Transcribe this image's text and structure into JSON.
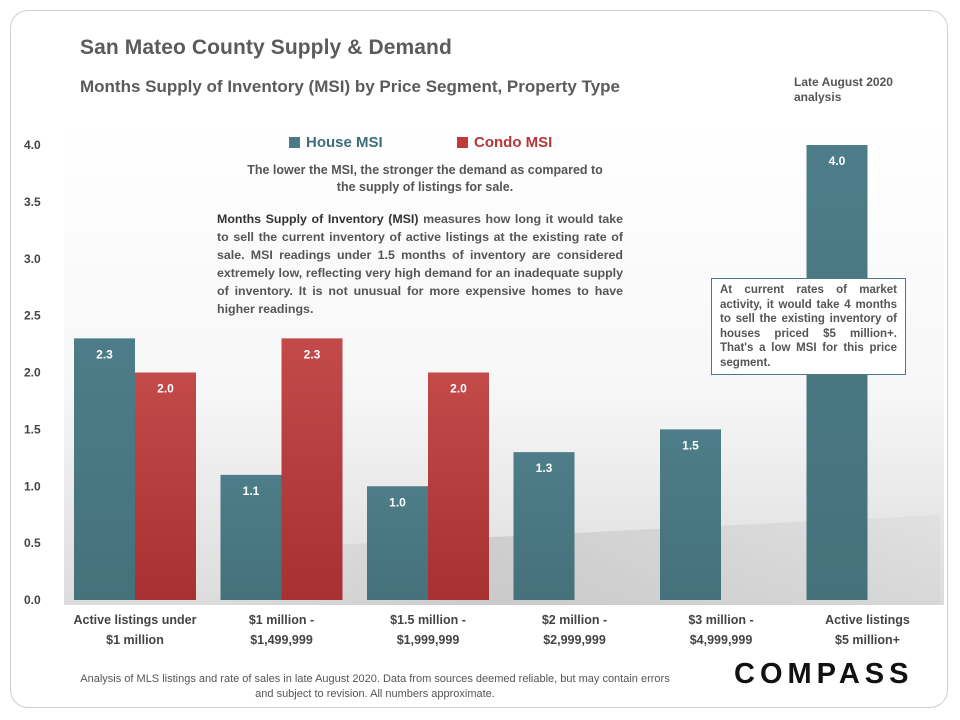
{
  "header": {
    "title": "San Mateo County Supply & Demand",
    "subtitle": "Months Supply of Inventory (MSI) by Price Segment, Property Type",
    "analysis_date": "Late August 2020 analysis"
  },
  "notes": {
    "demand_note": "The lower the MSI, the stronger the demand as compared to the supply of listings for sale.",
    "explain_lead": "Months Supply of Inventory (MSI)",
    "explain_body": " measures how long it would take to sell the current inventory of active listings at the existing rate of sale. MSI readings under 1.5 months of inventory are considered extremely low, reflecting very high demand for an inadequate supply of inventory. It is not unusual for more expensive homes to have higher readings.",
    "callout": "At current rates of market activity, it would take 4 months to sell the existing inventory of houses priced $5 million+. That's a  low MSI for this price segment."
  },
  "footer": {
    "note": "Analysis of MLS listings and rate of sales in late August 2020. Data from sources deemed reliable, but may contain errors and subject to revision. All numbers approximate.",
    "logo": "COMPASS"
  },
  "colors": {
    "house": "#4a7a85",
    "condo": "#c0393b",
    "axis_text": "#444444"
  },
  "chart_data": {
    "type": "bar",
    "categories": [
      [
        "Active listings under",
        "$1 million"
      ],
      [
        "$1 million -",
        "$1,499,999"
      ],
      [
        "$1.5 million -",
        "$1,999,999"
      ],
      [
        "$2 million -",
        "$2,999,999"
      ],
      [
        "$3 million -",
        "$4,999,999"
      ],
      [
        "Active listings",
        "$5 million+"
      ]
    ],
    "series": [
      {
        "name": "House MSI",
        "values": [
          2.3,
          1.1,
          1.0,
          1.3,
          1.5,
          4.0
        ]
      },
      {
        "name": "Condo MSI",
        "values": [
          2.0,
          2.3,
          2.0,
          null,
          null,
          null
        ]
      }
    ],
    "yticks": [
      "0.0",
      "0.5",
      "1.0",
      "1.5",
      "2.0",
      "2.5",
      "3.0",
      "3.5",
      "4.0"
    ],
    "ylim": [
      0,
      4.0
    ],
    "grid": false,
    "legend_position": "top-center"
  }
}
